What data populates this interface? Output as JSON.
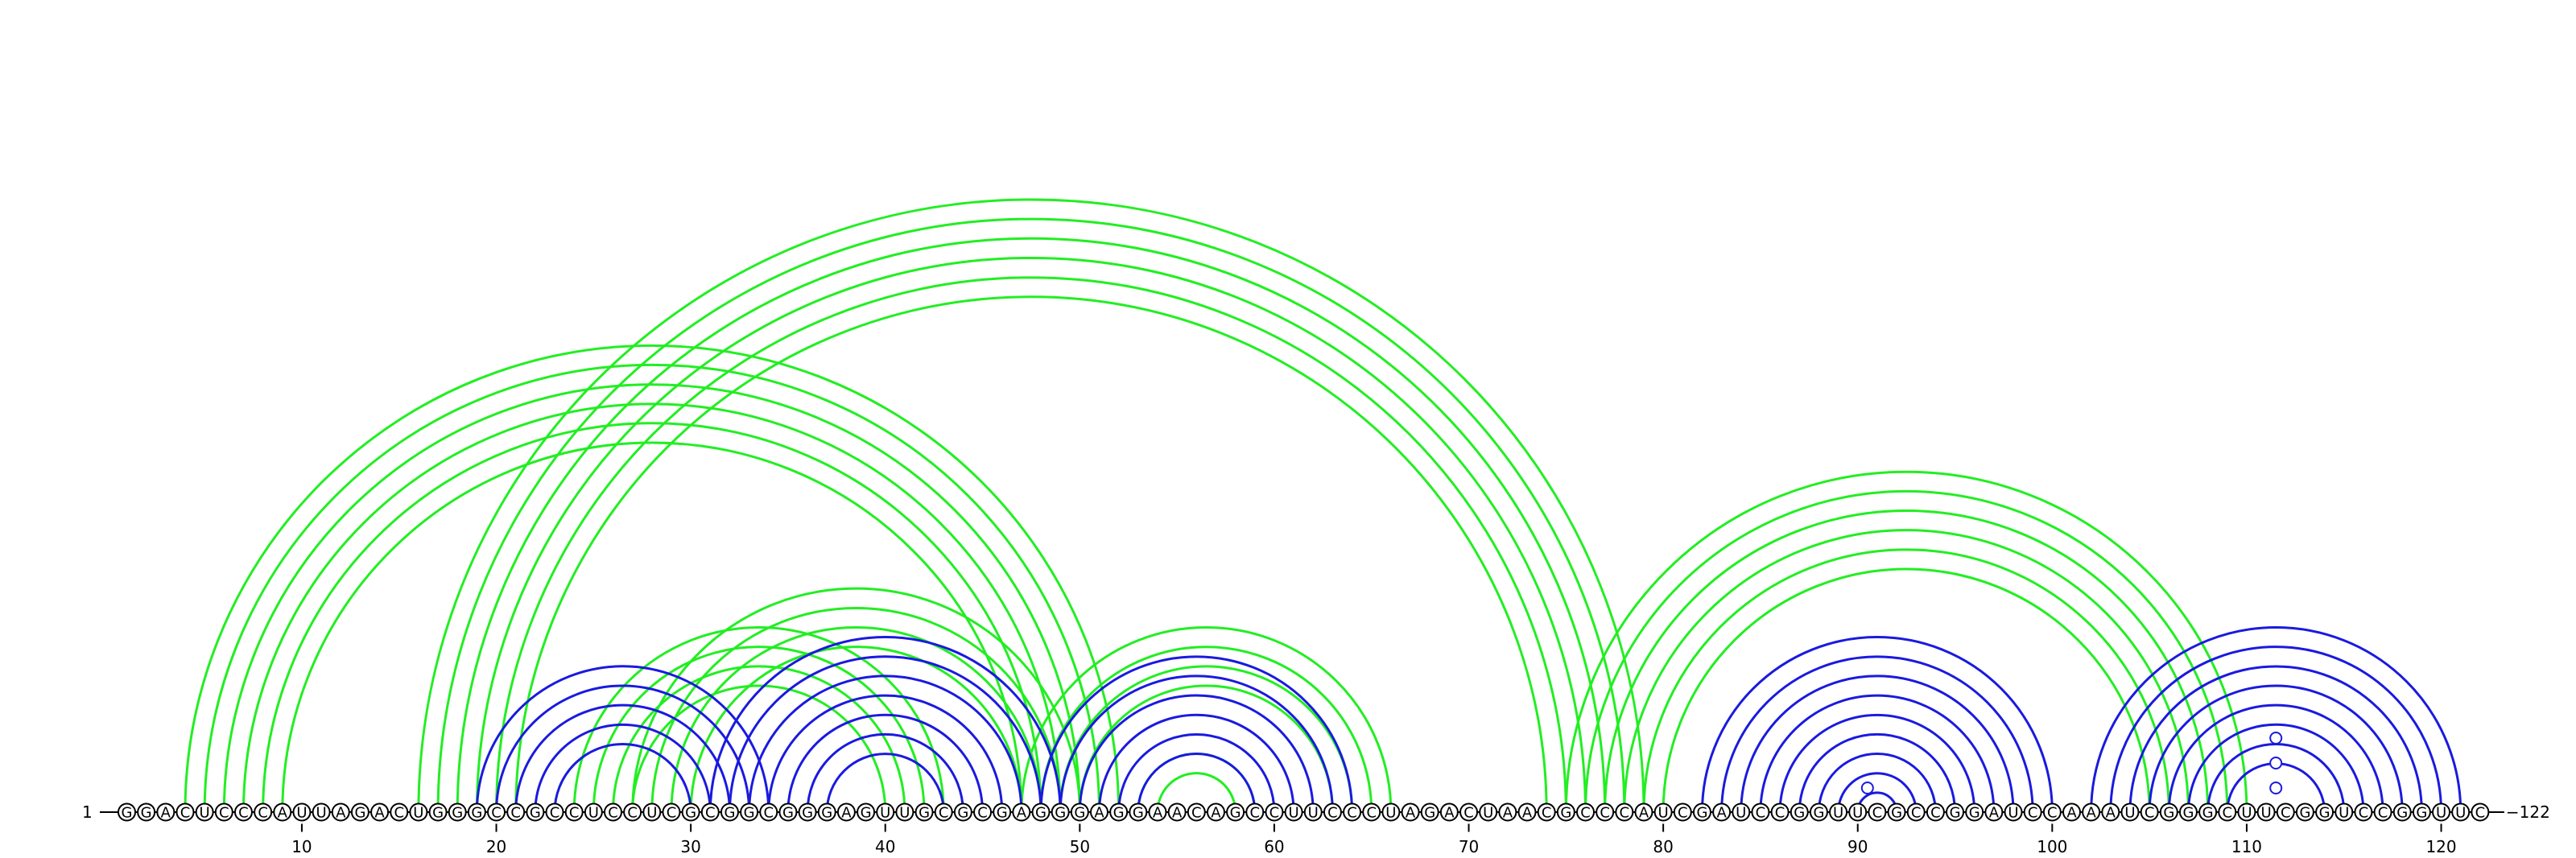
{
  "colors": {
    "green": "#22ee22",
    "blue": "#1a1adf",
    "backbone": "#000000"
  },
  "sequence": {
    "letters": "GGACUCCCAUUAGACUGGGCCGCCUCCUCGCGGCGGGAGUUGCGCGAGGGAGGAACAGCCUUCCCUAGACUAACGCCCAUCGAUCCGGUUCGCCGGAUCCAAAUCGGGCUUCGGUCCGGUUC",
    "start_label": "1",
    "end_label": "122"
  },
  "ticks": [
    "10",
    "20",
    "30",
    "40",
    "50",
    "60",
    "70",
    "80",
    "90",
    "100",
    "110",
    "120"
  ],
  "green_helices": [
    {
      "i": 4,
      "j": 52,
      "n": 6
    },
    {
      "i": 16,
      "j": 79,
      "n": 6
    },
    {
      "i": 24,
      "j": 43,
      "n": 4
    },
    {
      "i": 27,
      "j": 50,
      "n": 4
    },
    {
      "i": 47,
      "j": 66,
      "n": 4
    },
    {
      "i": 53,
      "j": 59,
      "n": 2
    },
    {
      "i": 75,
      "j": 110,
      "n": 6
    }
  ],
  "blue_helices": [
    {
      "i": 19,
      "j": 34,
      "n": 5
    },
    {
      "i": 31,
      "j": 49,
      "n": 7
    },
    {
      "i": 48,
      "j": 64,
      "n": 6
    },
    {
      "i": 82,
      "j": 100,
      "n": 9
    },
    {
      "i": 102,
      "j": 121,
      "n": 8
    }
  ],
  "loop_markers": [
    {
      "pos": 90.5,
      "level": 0
    },
    {
      "pos": 111.5,
      "level": 0
    },
    {
      "pos": 111.5,
      "level": 1
    },
    {
      "pos": 111.5,
      "level": 2
    }
  ]
}
